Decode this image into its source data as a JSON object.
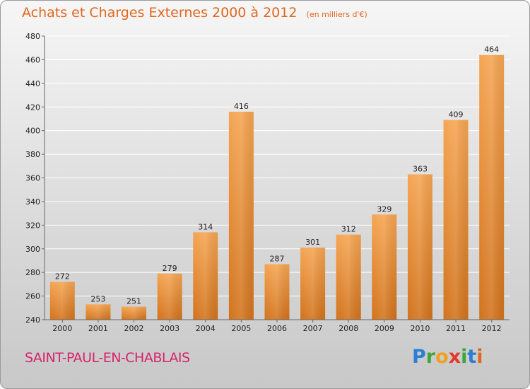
{
  "title": "Achats et Charges Externes 2000 à 2012",
  "unit": "(en milliers d'€)",
  "place": "SAINT-PAUL-EN-CHABLAIS",
  "logo": {
    "letters": [
      "P",
      "r",
      "o",
      "x",
      "i",
      "t",
      "i"
    ],
    "colors": [
      "#2a7fd4",
      "#3ea63a",
      "#f0a020",
      "#e23a2a",
      "#3ea63a",
      "#2a7fd4",
      "#e0671e"
    ]
  },
  "colors": {
    "bar_top": "#f5a552",
    "bar_bottom": "#d2731c",
    "grid": "#ffffff",
    "axis": "#666666",
    "title": "#e0671e",
    "place": "#d6246e"
  },
  "chart_data": {
    "type": "bar",
    "categories": [
      "2000",
      "2001",
      "2002",
      "2003",
      "2004",
      "2005",
      "2006",
      "2007",
      "2008",
      "2009",
      "2010",
      "2011",
      "2012"
    ],
    "values": [
      272,
      253,
      251,
      279,
      314,
      416,
      287,
      301,
      312,
      329,
      363,
      409,
      464
    ],
    "title": "Achats et Charges Externes 2000 à 2012",
    "ylim": [
      240,
      480
    ],
    "yticks": [
      240,
      260,
      280,
      300,
      320,
      340,
      360,
      380,
      400,
      420,
      440,
      460,
      480
    ],
    "grid": true
  }
}
